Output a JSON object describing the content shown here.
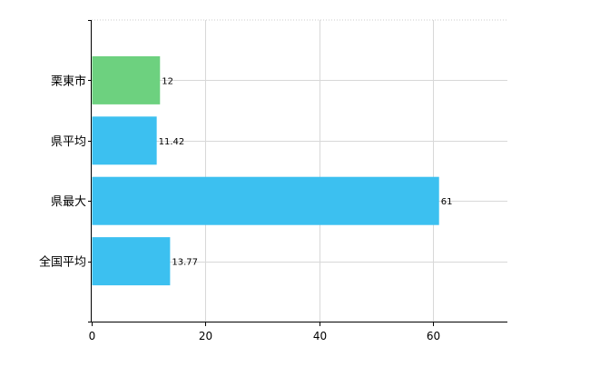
{
  "chart_data": {
    "type": "bar",
    "orientation": "horizontal",
    "categories": [
      "栗東市",
      "県平均",
      "県最大",
      "全国平均"
    ],
    "values": [
      12,
      11.42,
      61,
      13.77
    ],
    "data_labels": [
      "12",
      "11.42",
      "61",
      "13.77"
    ],
    "bar_colors": [
      "#6dd17f",
      "#3cc0f0",
      "#3cc0f0",
      "#3cc0f0"
    ],
    "xlim": [
      0,
      73
    ],
    "x_ticks": [
      0,
      20,
      40,
      60
    ],
    "x_tick_labels": [
      "0",
      "20",
      "40",
      "60"
    ],
    "grid": true,
    "title": "",
    "xlabel": "",
    "ylabel": ""
  }
}
